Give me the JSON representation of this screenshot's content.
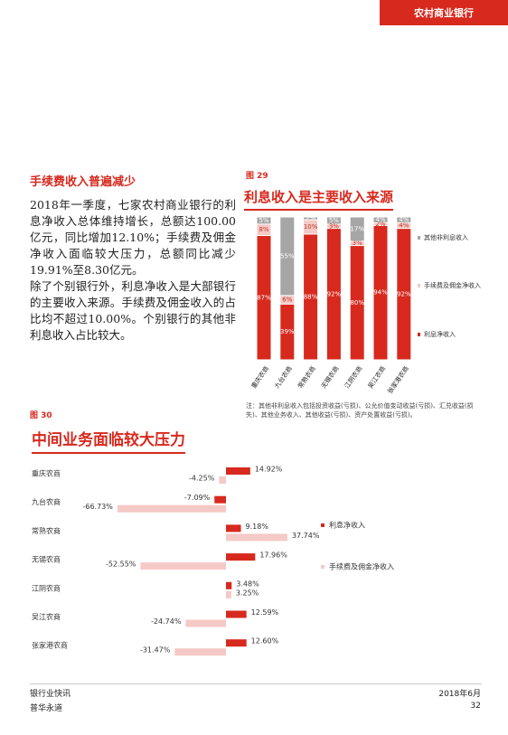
{
  "header": {
    "label": "农村商业银行"
  },
  "section": {
    "heading": "手续费收入普遍减少",
    "paragraphs": [
      "2018年一季度，七家农村商业银行的利息净收入总体维持增长，总额达100.00亿元，同比增加12.10%；手续费及佣金净收入面临较大压力，总额同比减少19.91%至8.30亿元。",
      "除了个别银行外，利息净收入是大部银行的主要收入来源。手续费及佣金收入的占比均不超过10.00%。个别银行的其他非利息收入占比较大。"
    ]
  },
  "chart_data": [
    {
      "type": "stacked_bar",
      "figure": "图 29",
      "title": "利息收入是主要收入来源",
      "note": "注：其他非利息收入包括投资收益(亏损)、公允价值变动收益(亏损)、汇兑收益(损失)、其他业务收入、其他收益(亏损)、资产处置收益(亏损)。",
      "categories": [
        "重庆农商",
        "九台农商",
        "常熟农商",
        "无锡农商",
        "江阴农商",
        "吴江农商",
        "张家港农商"
      ],
      "ylim": [
        0,
        100
      ],
      "series": [
        {
          "name": "利息净收入",
          "color": "#d7291e",
          "values": [
            87,
            39,
            88,
            92,
            80,
            94,
            92
          ],
          "value_labels": [
            "87%",
            "39%",
            "88%",
            "92%",
            "80%",
            "94%",
            "92%"
          ]
        },
        {
          "name": "手续费及佣金净收入",
          "color": "#f5c9c6",
          "values": [
            8,
            6,
            10,
            3,
            3,
            2,
            4
          ],
          "value_labels": [
            "8%",
            "6%",
            "10%",
            "3%",
            "3%",
            "2%",
            "4%"
          ]
        },
        {
          "name": "其他非利息收入",
          "color": "#a6a6a6",
          "values": [
            5,
            55,
            2,
            5,
            17,
            4,
            4
          ],
          "value_labels": [
            "5%",
            "55%",
            "2%",
            "5%",
            "17%",
            "4%",
            "4%"
          ]
        }
      ]
    },
    {
      "type": "hbar",
      "figure": "图 30",
      "title": "中间业务面临较大压力",
      "categories": [
        "重庆农商",
        "九台农商",
        "常熟农商",
        "无锡农商",
        "江阴农商",
        "吴江农商",
        "张家港农商"
      ],
      "xlim": [
        -80,
        60
      ],
      "series": [
        {
          "name": "利息净收入",
          "color": "#d7291e",
          "values": [
            14.92,
            -7.09,
            9.18,
            17.96,
            3.48,
            12.59,
            12.6
          ],
          "value_labels": [
            "14.92%",
            "-7.09%",
            "9.18%",
            "17.96%",
            "3.48%",
            "12.59%",
            "12.60%"
          ]
        },
        {
          "name": "手续费及佣金净收入",
          "color": "#f5c9c6",
          "values": [
            -4.25,
            -66.73,
            37.74,
            -52.55,
            3.25,
            -24.74,
            -31.47
          ],
          "value_labels": [
            "-4.25%",
            "-66.73%",
            "37.74%",
            "-52.55%",
            "3.25%",
            "-24.74%",
            "-31.47%"
          ]
        }
      ]
    }
  ],
  "footer": {
    "left": [
      "银行业快讯",
      "普华永道"
    ],
    "date": "2018年6月",
    "page": "32"
  }
}
